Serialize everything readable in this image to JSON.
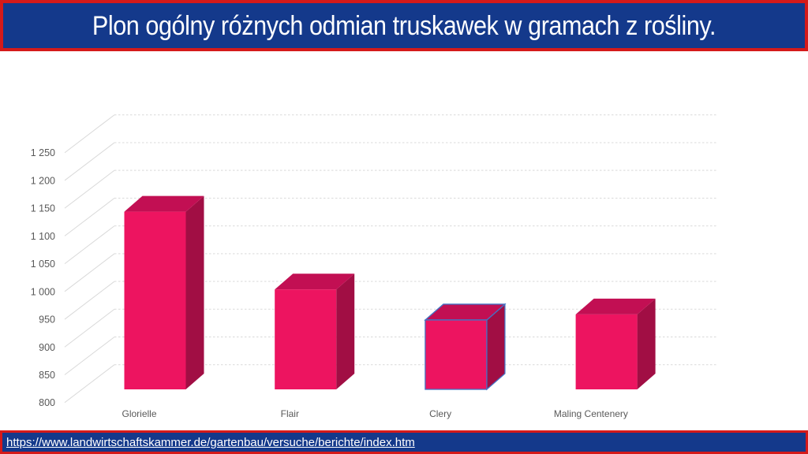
{
  "header": {
    "title": "Plon ogólny różnych odmian truskawek w gramach z rośliny.",
    "bg_color": "#14398B",
    "border_color": "#D51A1A",
    "text_color": "#FFFFFF"
  },
  "chart_data": {
    "type": "bar",
    "projection": "3d",
    "title": "Plon ogólny różnych odmian truskawek w gramach z rośliny.",
    "categories": [
      "Glorielle",
      "Flair",
      "Clery",
      "Maling Centenery"
    ],
    "values": [
      1120,
      980,
      925,
      935
    ],
    "xlabel": "",
    "ylabel": "",
    "ylim": [
      800,
      1250
    ],
    "ytick_step": 50,
    "ytick_labels": [
      "800",
      "850",
      "900",
      "950",
      "1 000",
      "1 050",
      "1 100",
      "1 150",
      "1 200",
      "1 250"
    ],
    "grid": true,
    "legend": false,
    "selected_category": "Clery",
    "colors": {
      "bar_front": "#ED1460",
      "bar_top": "#C20F53",
      "bar_side": "#A10E44",
      "gridline": "#D9D9D9",
      "axis_label": "#595959",
      "selection_outline": "#4472C4"
    }
  },
  "footer": {
    "url": "https://www.landwirtschaftskammer.de/gartenbau/versuche/berichte/index.htm",
    "bg_color": "#14398B",
    "border_color": "#D51A1A",
    "text_color": "#FFFFFF"
  }
}
